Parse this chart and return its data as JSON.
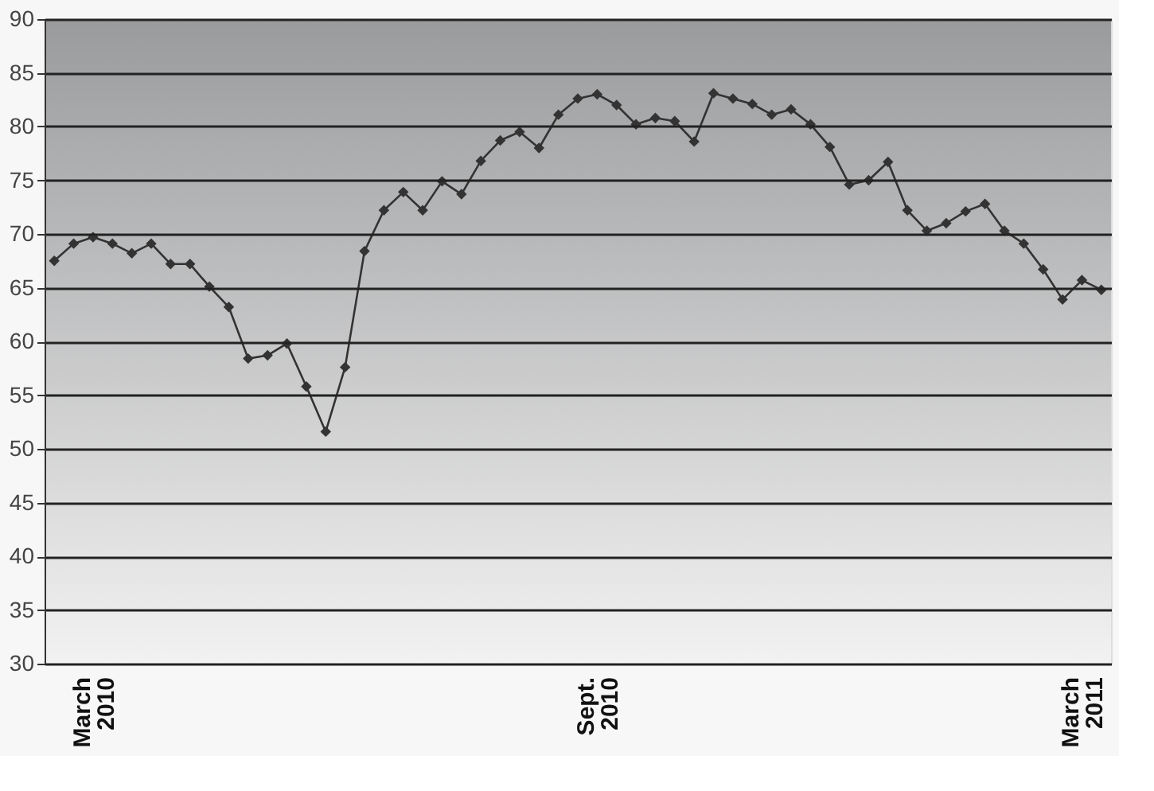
{
  "chart_data": {
    "type": "line",
    "categories": [
      null,
      null,
      "March 2010",
      null,
      null,
      null,
      null,
      null,
      null,
      null,
      null,
      null,
      null,
      null,
      null,
      null,
      null,
      null,
      null,
      null,
      null,
      null,
      null,
      null,
      null,
      null,
      null,
      null,
      "Sept. 2010",
      null,
      null,
      null,
      null,
      null,
      null,
      null,
      null,
      null,
      null,
      null,
      null,
      null,
      null,
      null,
      null,
      null,
      null,
      null,
      null,
      null,
      null,
      null,
      null,
      "March 2011",
      null
    ],
    "series": [
      {
        "color": "#333333",
        "values": [
          67.5,
          69.1,
          69.7,
          69.1,
          68.2,
          69.1,
          67.2,
          67.2,
          65.1,
          63.2,
          58.4,
          58.7,
          59.8,
          55.8,
          51.6,
          57.6,
          68.4,
          72.2,
          73.9,
          72.2,
          74.9,
          73.7,
          76.8,
          78.7,
          79.5,
          78.0,
          81.1,
          82.6,
          83.0,
          82.0,
          80.2,
          80.8,
          80.5,
          78.6,
          83.1,
          82.6,
          82.1,
          81.1,
          81.6,
          80.2,
          78.1,
          74.6,
          75.0,
          76.7,
          72.2,
          70.3,
          71.0,
          72.1,
          72.8,
          70.3,
          69.1,
          66.7,
          63.9,
          65.7,
          64.8
        ]
      }
    ],
    "ylim": [
      30,
      90
    ],
    "yticks": [
      30,
      35,
      40,
      45,
      50,
      55,
      60,
      65,
      70,
      75,
      80,
      85,
      90
    ],
    "grid": "y",
    "marker": "diamond",
    "line_style": "solid"
  }
}
